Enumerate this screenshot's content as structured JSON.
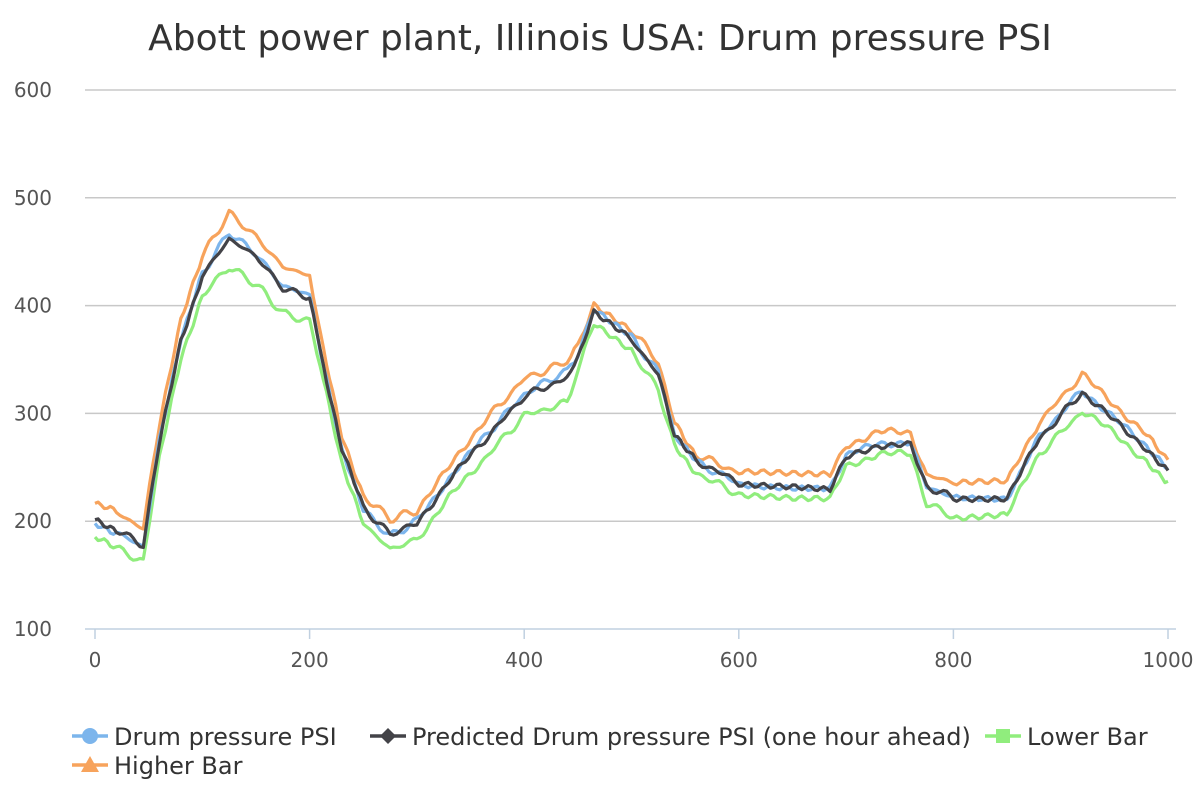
{
  "chart_data": {
    "type": "line",
    "title": "Abott power plant, Illinois USA: Drum pressure PSI",
    "xlabel": "",
    "ylabel": "",
    "xlim": [
      0,
      1000
    ],
    "ylim": [
      100,
      600
    ],
    "x_ticks": [
      "0",
      "200",
      "400",
      "600",
      "800",
      "1000"
    ],
    "y_ticks": [
      "100",
      "200",
      "300",
      "400",
      "500",
      "600"
    ],
    "grid": true,
    "legend_position": "bottom",
    "x": [
      0,
      20,
      45,
      60,
      80,
      100,
      125,
      150,
      175,
      200,
      210,
      230,
      250,
      275,
      300,
      330,
      360,
      400,
      440,
      450,
      465,
      500,
      525,
      540,
      560,
      600,
      650,
      685,
      700,
      730,
      760,
      775,
      800,
      850,
      880,
      920,
      950,
      980,
      1000
    ],
    "series": [
      {
        "name": "Drum pressure PSI",
        "color": "#7cb5ec",
        "marker": "circle",
        "values": [
          198,
          190,
          176,
          275,
          370,
          430,
          468,
          448,
          418,
          410,
          360,
          265,
          210,
          186,
          200,
          240,
          275,
          318,
          340,
          355,
          395,
          370,
          338,
          280,
          255,
          235,
          232,
          232,
          260,
          273,
          272,
          232,
          222,
          222,
          278,
          322,
          295,
          270,
          248
        ]
      },
      {
        "name": "Predicted Drum pressure PSI (one hour ahead)",
        "color": "#434348",
        "marker": "diamond",
        "values": [
          200,
          192,
          178,
          272,
          368,
          428,
          462,
          446,
          416,
          408,
          358,
          268,
          212,
          188,
          198,
          238,
          272,
          316,
          333,
          350,
          393,
          368,
          336,
          282,
          256,
          236,
          232,
          230,
          258,
          271,
          270,
          232,
          222,
          222,
          276,
          320,
          293,
          268,
          247
        ]
      },
      {
        "name": "Lower Bar",
        "color": "#90ed7d",
        "marker": "square",
        "values": [
          184,
          175,
          162,
          258,
          350,
          410,
          436,
          420,
          393,
          385,
          345,
          255,
          198,
          174,
          183,
          222,
          255,
          298,
          310,
          340,
          384,
          358,
          322,
          272,
          245,
          225,
          220,
          220,
          250,
          263,
          262,
          217,
          204,
          206,
          262,
          302,
          282,
          255,
          237
        ]
      },
      {
        "name": "Higher Bar",
        "color": "#f7a35c",
        "marker": "triangle",
        "values": [
          216,
          208,
          193,
          290,
          385,
          446,
          486,
          464,
          436,
          428,
          372,
          280,
          224,
          202,
          210,
          250,
          290,
          332,
          348,
          362,
          402,
          378,
          348,
          292,
          262,
          245,
          243,
          242,
          270,
          283,
          282,
          243,
          236,
          236,
          292,
          336,
          308,
          280,
          257
        ]
      }
    ]
  }
}
